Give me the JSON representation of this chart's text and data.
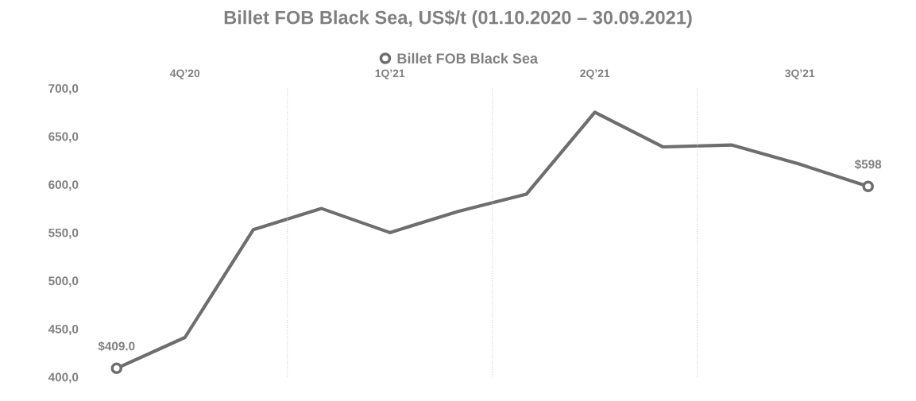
{
  "chart_data": {
    "type": "line",
    "title": "Billet FOB Black Sea, US$/t (01.10.2020 – 30.09.2021)",
    "categories": [
      null,
      "4Q’20",
      null,
      null,
      "1Q’21",
      null,
      null,
      "2Q’21",
      null,
      null,
      "3Q’21",
      null
    ],
    "series": [
      {
        "name": "Billet FOB Black Sea",
        "color": "#6e6e6e",
        "values": [
          409.0,
          441,
          553,
          575,
          550,
          572,
          590,
          675,
          639,
          641,
          621,
          598
        ],
        "value_labels": [
          "$409.0",
          null,
          null,
          null,
          null,
          null,
          null,
          null,
          null,
          null,
          null,
          "$598"
        ]
      }
    ],
    "ylim": [
      400,
      700
    ],
    "yticks": [
      {
        "value": 400,
        "label": "400,0"
      },
      {
        "value": 450,
        "label": "450,0"
      },
      {
        "value": 500,
        "label": "500,0"
      },
      {
        "value": 550,
        "label": "550,0"
      },
      {
        "value": 600,
        "label": "600,0"
      },
      {
        "value": 650,
        "label": "650,0"
      },
      {
        "value": 700,
        "label": "700,0"
      }
    ],
    "grid": "x",
    "legend": "top",
    "line_style": "solid"
  }
}
